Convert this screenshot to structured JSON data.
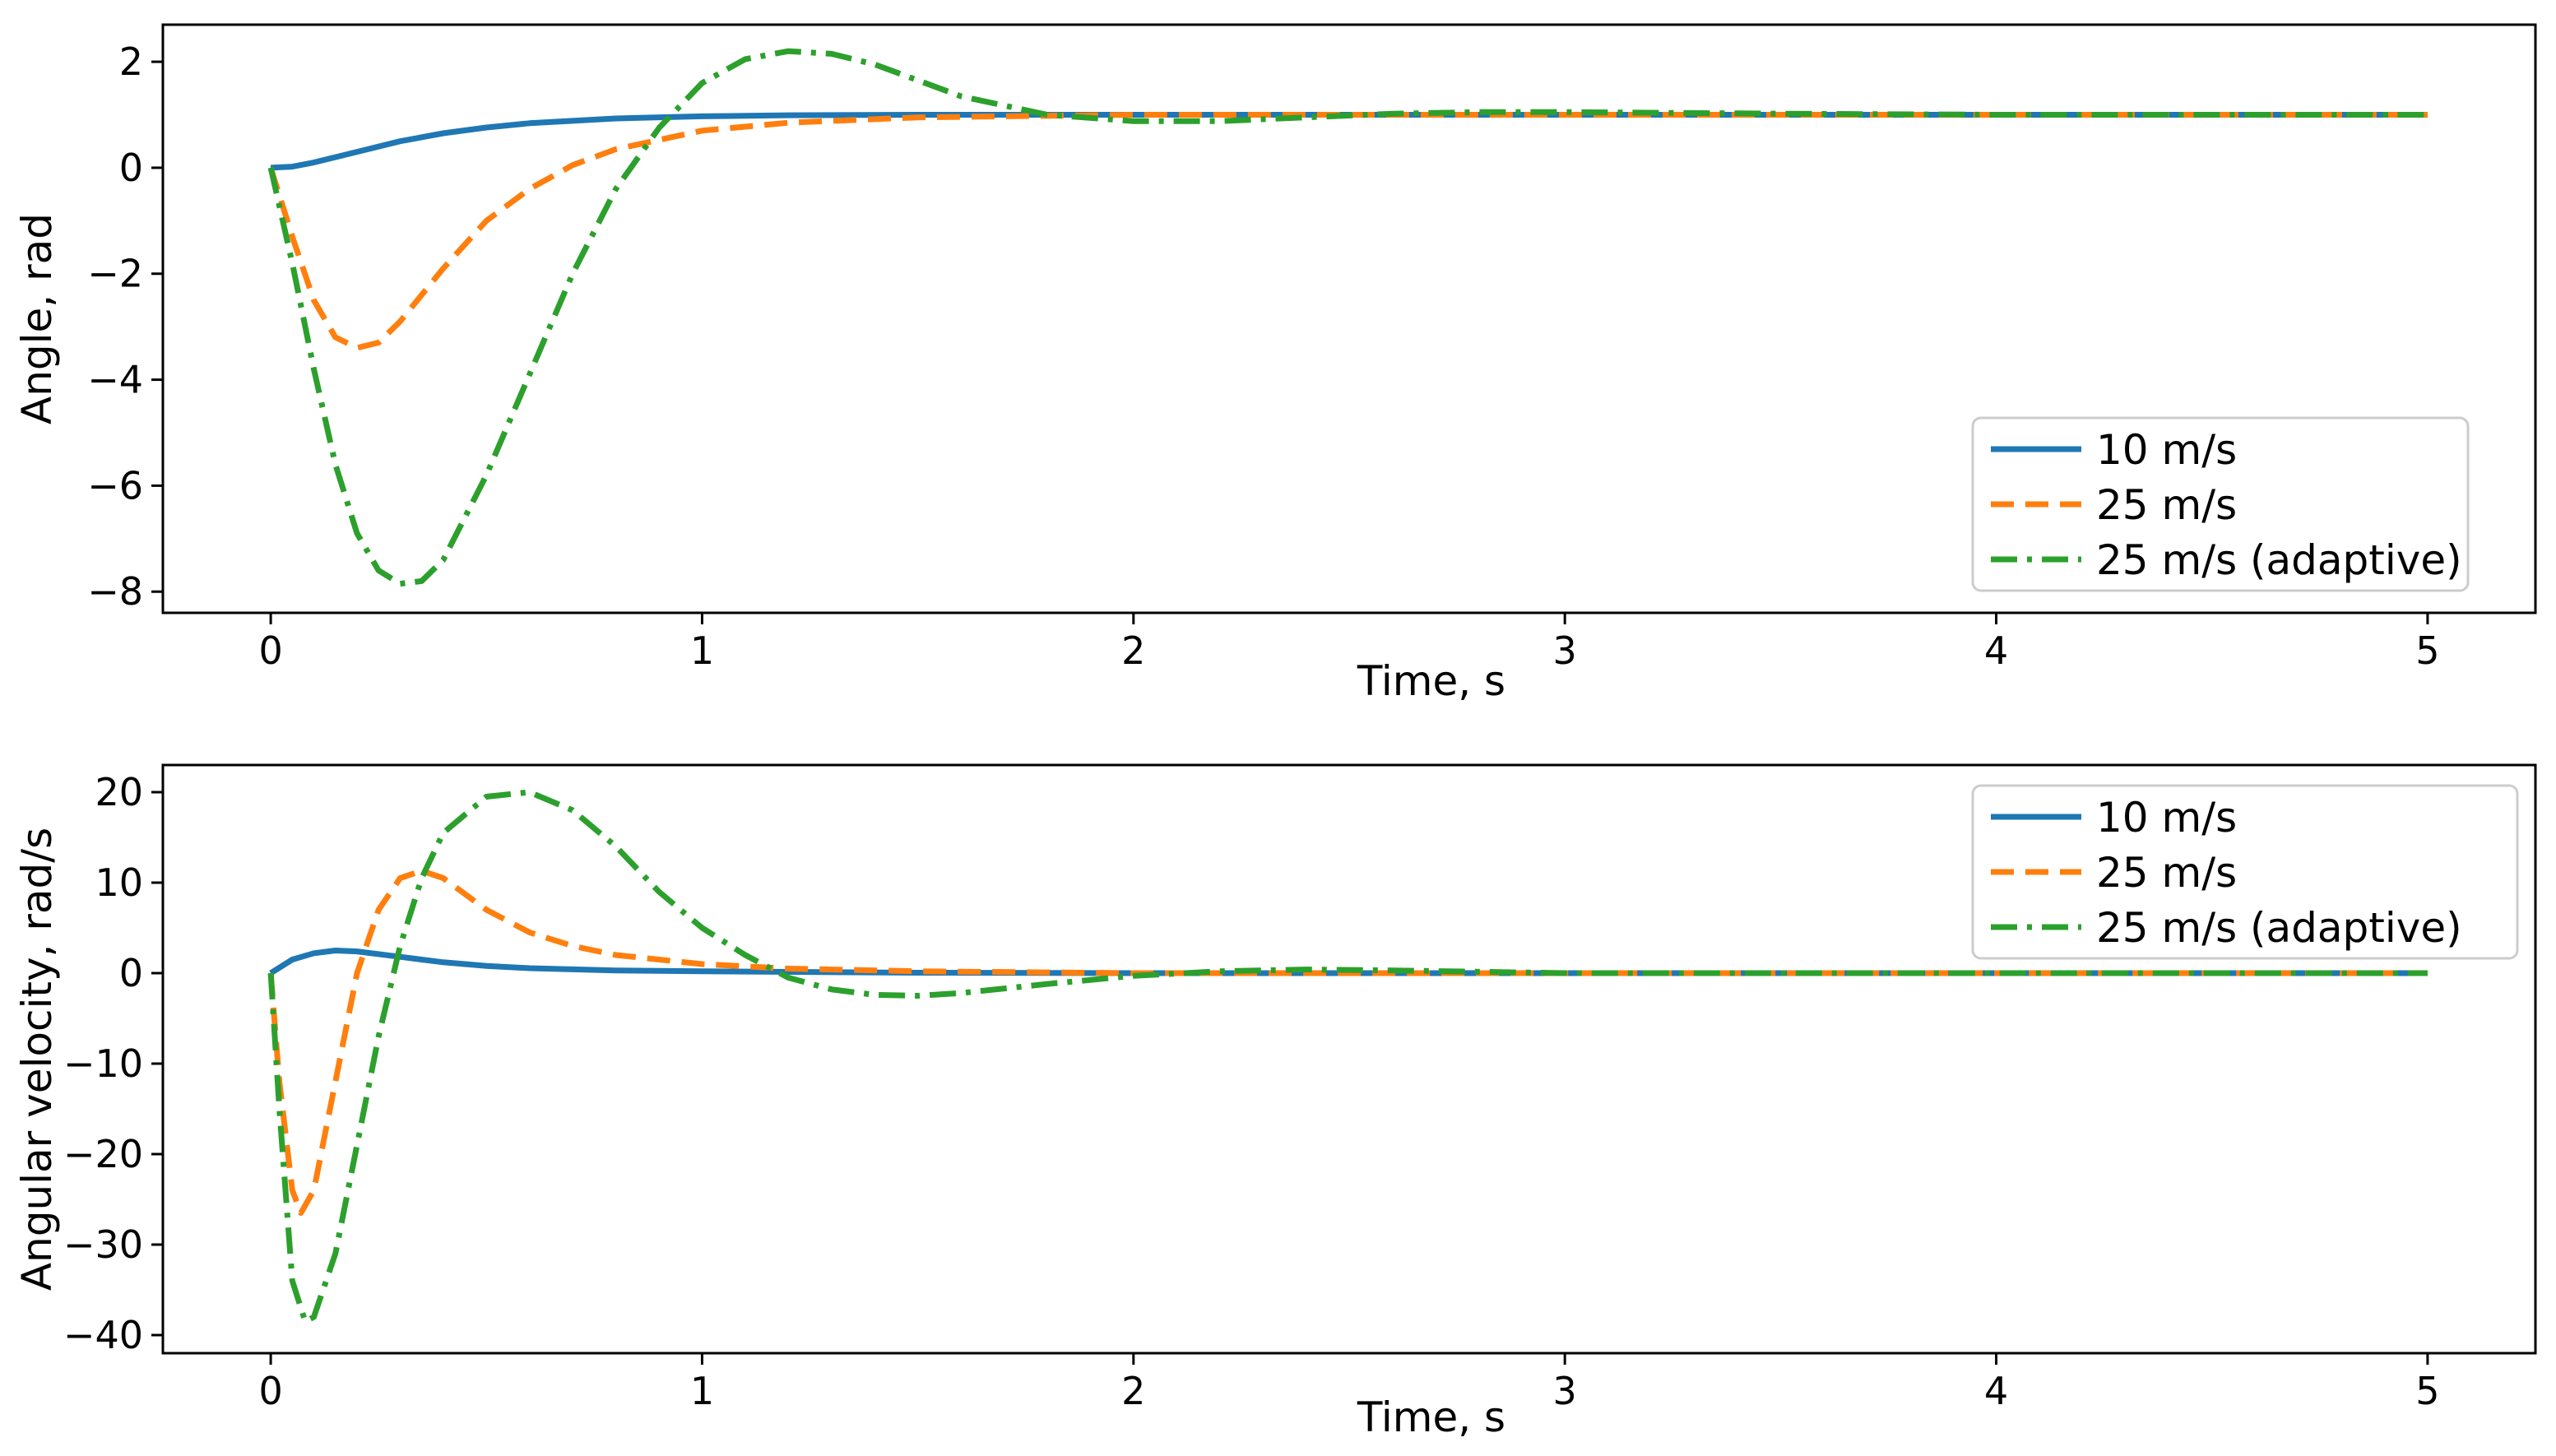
{
  "chart_data": [
    {
      "type": "line",
      "title": "",
      "xlabel": "Time, s",
      "ylabel": "Angle, rad",
      "xlim": [
        -0.25,
        5.25
      ],
      "ylim": [
        -8.4,
        2.7
      ],
      "xticks": [
        0,
        1,
        2,
        3,
        4,
        5
      ],
      "xtick_labels": [
        "0",
        "1",
        "2",
        "3",
        "4",
        "5"
      ],
      "yticks": [
        2,
        0,
        -2,
        -4,
        -6,
        -8
      ],
      "ytick_labels": [
        "2",
        "0",
        "−2",
        "−4",
        "−6",
        "−8"
      ],
      "grid": false,
      "legend_position": "lower-right",
      "series": [
        {
          "name": "10 m/s",
          "color": "#1f77b4",
          "style": "solid",
          "x": [
            0,
            0.05,
            0.1,
            0.2,
            0.3,
            0.4,
            0.5,
            0.6,
            0.8,
            1.0,
            1.2,
            1.5,
            2.0,
            3.0,
            4.0,
            5.0
          ],
          "y": [
            0,
            0.02,
            0.1,
            0.3,
            0.5,
            0.65,
            0.76,
            0.84,
            0.93,
            0.97,
            0.99,
            1.0,
            1.0,
            1.0,
            1.0,
            1.0
          ]
        },
        {
          "name": "25 m/s",
          "color": "#ff7f0e",
          "style": "dashed",
          "x": [
            0,
            0.05,
            0.1,
            0.15,
            0.2,
            0.25,
            0.3,
            0.4,
            0.5,
            0.6,
            0.7,
            0.8,
            1.0,
            1.2,
            1.5,
            2.0,
            2.5,
            3.0,
            4.0,
            5.0
          ],
          "y": [
            0,
            -1.3,
            -2.5,
            -3.2,
            -3.4,
            -3.3,
            -2.9,
            -1.9,
            -1.0,
            -0.4,
            0.05,
            0.35,
            0.7,
            0.85,
            0.95,
            1.0,
            1.0,
            1.0,
            1.0,
            1.0
          ]
        },
        {
          "name": "25 m/s (adaptive)",
          "color": "#2ca02c",
          "style": "dashdot",
          "x": [
            0,
            0.05,
            0.1,
            0.15,
            0.2,
            0.25,
            0.3,
            0.35,
            0.4,
            0.5,
            0.6,
            0.7,
            0.8,
            0.9,
            1.0,
            1.1,
            1.2,
            1.3,
            1.4,
            1.5,
            1.6,
            1.8,
            2.0,
            2.2,
            2.4,
            2.6,
            2.8,
            3.0,
            3.5,
            4.0,
            5.0
          ],
          "y": [
            0,
            -1.8,
            -3.8,
            -5.6,
            -6.9,
            -7.6,
            -7.85,
            -7.8,
            -7.4,
            -5.8,
            -3.9,
            -2.0,
            -0.4,
            0.75,
            1.6,
            2.05,
            2.2,
            2.15,
            1.95,
            1.65,
            1.35,
            1.0,
            0.88,
            0.88,
            0.95,
            1.02,
            1.05,
            1.05,
            1.02,
            1.0,
            1.0
          ]
        }
      ]
    },
    {
      "type": "line",
      "title": "",
      "xlabel": "Time, s",
      "ylabel": "Angular velocity, rad/s",
      "xlim": [
        -0.25,
        5.25
      ],
      "ylim": [
        -42,
        23
      ],
      "xticks": [
        0,
        1,
        2,
        3,
        4,
        5
      ],
      "xtick_labels": [
        "0",
        "1",
        "2",
        "3",
        "4",
        "5"
      ],
      "yticks": [
        20,
        10,
        0,
        -10,
        -20,
        -30,
        -40
      ],
      "ytick_labels": [
        "20",
        "10",
        "0",
        "−10",
        "−20",
        "−30",
        "−40"
      ],
      "grid": false,
      "legend_position": "upper-right",
      "series": [
        {
          "name": "10 m/s",
          "color": "#1f77b4",
          "style": "solid",
          "x": [
            0,
            0.05,
            0.1,
            0.15,
            0.2,
            0.3,
            0.4,
            0.5,
            0.6,
            0.8,
            1.0,
            1.5,
            2.0,
            3.0,
            4.0,
            5.0
          ],
          "y": [
            0,
            1.5,
            2.2,
            2.5,
            2.4,
            1.8,
            1.2,
            0.8,
            0.55,
            0.3,
            0.2,
            0.05,
            0,
            0,
            0,
            0
          ]
        },
        {
          "name": "25 m/s",
          "color": "#ff7f0e",
          "style": "dashed",
          "x": [
            0,
            0.02,
            0.05,
            0.07,
            0.1,
            0.15,
            0.2,
            0.25,
            0.3,
            0.35,
            0.4,
            0.5,
            0.6,
            0.7,
            0.8,
            1.0,
            1.2,
            1.5,
            2.0,
            3.0,
            4.0,
            5.0
          ],
          "y": [
            0,
            -12,
            -24,
            -26.5,
            -24,
            -12,
            0,
            7,
            10.5,
            11.3,
            10.5,
            7,
            4.5,
            3,
            2,
            1,
            0.5,
            0.2,
            0,
            0,
            0,
            0
          ]
        },
        {
          "name": "25 m/s (adaptive)",
          "color": "#2ca02c",
          "style": "dashdot",
          "x": [
            0,
            0.02,
            0.05,
            0.08,
            0.1,
            0.15,
            0.2,
            0.25,
            0.3,
            0.35,
            0.4,
            0.5,
            0.6,
            0.7,
            0.8,
            0.9,
            1.0,
            1.1,
            1.2,
            1.3,
            1.4,
            1.5,
            1.6,
            1.8,
            2.0,
            2.2,
            2.4,
            2.6,
            3.0,
            4.0,
            5.0
          ],
          "y": [
            0,
            -15,
            -34,
            -38.5,
            -38,
            -31,
            -19,
            -7,
            3,
            10.5,
            15.5,
            19.5,
            20,
            18,
            14,
            9,
            5,
            2,
            -0.5,
            -1.8,
            -2.4,
            -2.5,
            -2.2,
            -1.2,
            -0.3,
            0.2,
            0.4,
            0.3,
            0,
            0,
            0
          ]
        }
      ]
    }
  ]
}
